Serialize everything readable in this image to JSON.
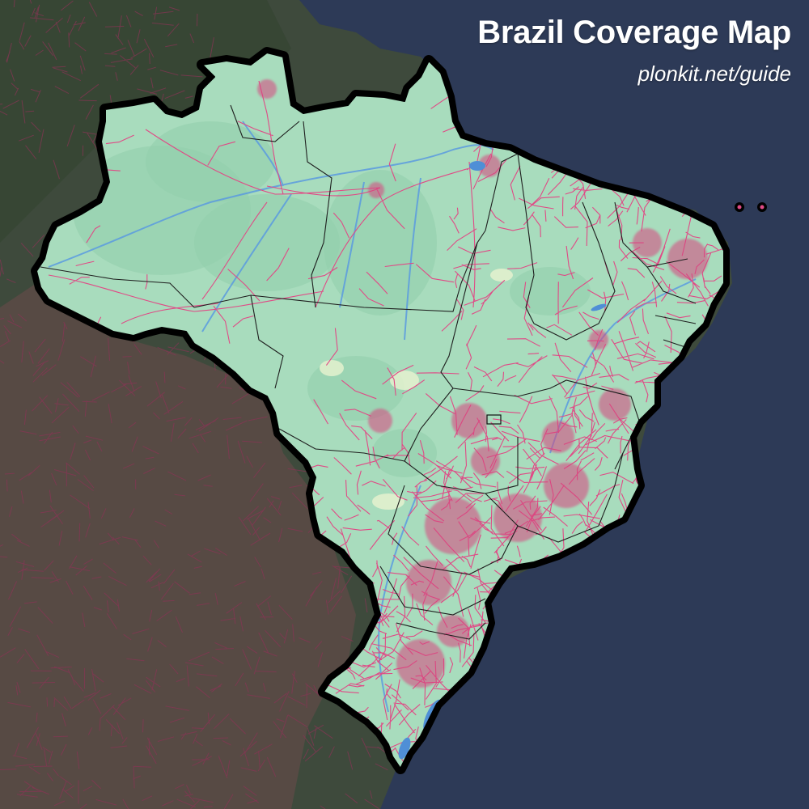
{
  "header": {
    "title": "Brazil Coverage Map",
    "subtitle": "plonkit.net/guide"
  },
  "map": {
    "region": "Brazil",
    "layers": [
      "ocean",
      "south-america-landmass",
      "brazil-outline",
      "state-borders",
      "coverage-roads",
      "rivers",
      "lakes",
      "fernando-de-noronha-islands"
    ],
    "colors": {
      "ocean": "#2d3a57",
      "land_dark": "#3d4a3c",
      "land_brown": "#5a4b45",
      "brazil_fill": "#a8dcbd",
      "brazil_fill_dark": "#93cfac",
      "border_outer": "#000000",
      "state_border": "#1a1a1a",
      "coverage": "#e04a86",
      "coverage_foreign": "#8a3355",
      "water": "#4f8fd6"
    }
  }
}
